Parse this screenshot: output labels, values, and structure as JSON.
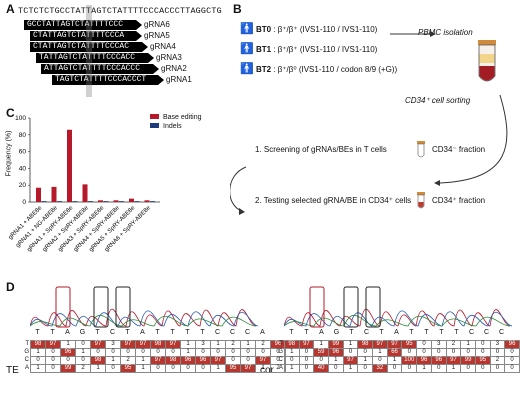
{
  "panels": {
    "A": "A",
    "B": "B",
    "C": "C",
    "D": "D"
  },
  "panelA": {
    "sequence": "TCTCTCTGCCTATTAGTCTATTTTCCCACCCTTAGGCTG",
    "grnas": [
      {
        "seq": "GCCTATTAGTCTATTTTCCC",
        "label": "gRNA6"
      },
      {
        "seq": "CTATTAGTCTATTTTCCCA",
        "label": "gRNA5"
      },
      {
        "seq": "CTATTAGTCTATTTTCCCAC",
        "label": "gRNA4"
      },
      {
        "seq": "TATTAGTCTATTTTCCCACC",
        "label": "gRNA3"
      },
      {
        "seq": "ATTAGTCTATTTTCCCACCC",
        "label": "gRNA2"
      },
      {
        "seq": "TAGTCTATTTTCCCACCCT",
        "label": "gRNA1"
      }
    ]
  },
  "panelB": {
    "donors": [
      {
        "id": "BT0",
        "genotype": "β⁺/β⁺ (IVS1-110 / IVS1-110)"
      },
      {
        "id": "BT1",
        "genotype": "β⁺/β⁺ (IVS1-110 / IVS1-110)"
      },
      {
        "id": "BT2",
        "genotype": "β⁺/β⁰ (IVS1-110 / codon 8/9 (+G))"
      }
    ],
    "pbmc": "PBMC isolation",
    "sorting": "CD34⁺ cell sorting",
    "step1": "1. Screening of gRNAs/BEs in T cells",
    "step2": "2. Testing selected gRNA/BE in CD34⁺ cells",
    "fraction1": "CD34⁻ fraction",
    "fraction2": "CD34⁺ fraction"
  },
  "chart_data": {
    "type": "bar",
    "ylabel": "Frequency (%)",
    "ylim": [
      0,
      100
    ],
    "yticks": [
      0,
      20,
      40,
      60,
      80,
      100
    ],
    "categories": [
      "gRNA1 + ABE8e",
      "gRNA1 + NG-ABE8e",
      "gRNA1 + SpRY-ABE8e",
      "gRNA2 + SpRY-ABE8e",
      "gRNA3 + SpRY-ABE8e",
      "gRNA4 + SpRY-ABE8e",
      "gRNA5 + SpRY-ABE8e",
      "gRNA6 + SpRY-ABE8e"
    ],
    "series": [
      {
        "name": "Base editing",
        "color": "#b5192a",
        "values": [
          17,
          18,
          86,
          21,
          2,
          2,
          4,
          2
        ]
      },
      {
        "name": "Indels",
        "color": "#1f3a7a",
        "values": [
          1,
          1,
          1,
          1,
          1,
          1,
          1,
          1
        ]
      }
    ],
    "legend_position": "top-right"
  },
  "panelD": {
    "bases": [
      "T",
      "T",
      "A",
      "G",
      "T",
      "C",
      "T",
      "A",
      "T",
      "T",
      "T",
      "T",
      "C",
      "C",
      "C",
      "A",
      "C",
      "C",
      "C",
      "T"
    ],
    "left_label": "TE",
    "right_label": "cor",
    "row_letters": [
      "T",
      "G",
      "C",
      "A"
    ],
    "left_table": [
      [
        "98",
        "97",
        "1",
        "0",
        "97",
        "3",
        "97",
        "97",
        "98",
        "97",
        "1",
        "3",
        "1",
        "2",
        "1",
        "2",
        "96"
      ],
      [
        "1",
        "0",
        "96",
        "1",
        "0",
        "0",
        "0",
        "0",
        "0",
        "0",
        "1",
        "0",
        "0",
        "0",
        "0",
        "0",
        "0"
      ],
      [
        "0",
        "0",
        "0",
        "0",
        "98",
        "1",
        "2",
        "1",
        "97",
        "98",
        "96",
        "96",
        "97",
        "0",
        "0",
        "97",
        "0"
      ],
      [
        "1",
        "0",
        "99",
        "2",
        "1",
        "0",
        "95",
        "1",
        "0",
        "0",
        "0",
        "0",
        "1",
        "95",
        "97",
        "1",
        "2"
      ]
    ],
    "right_table": [
      [
        "98",
        "97",
        "1",
        "99",
        "1",
        "98",
        "97",
        "97",
        "95",
        "0",
        "3",
        "2",
        "1",
        "0",
        "3",
        "96"
      ],
      [
        "1",
        "0",
        "59",
        "96",
        "0",
        "0",
        "1",
        "66",
        "0",
        "0",
        "0",
        "0",
        "0",
        "0",
        "0",
        "0"
      ],
      [
        "0",
        "0",
        "0",
        "1",
        "97",
        "1",
        "0",
        "1",
        "100",
        "96",
        "96",
        "97",
        "99",
        "95",
        "2",
        "0"
      ],
      [
        "1",
        "0",
        "40",
        "0",
        "1",
        "0",
        "32",
        "0",
        "0",
        "1",
        "0",
        "1",
        "0",
        "0",
        "0",
        "0"
      ]
    ]
  }
}
